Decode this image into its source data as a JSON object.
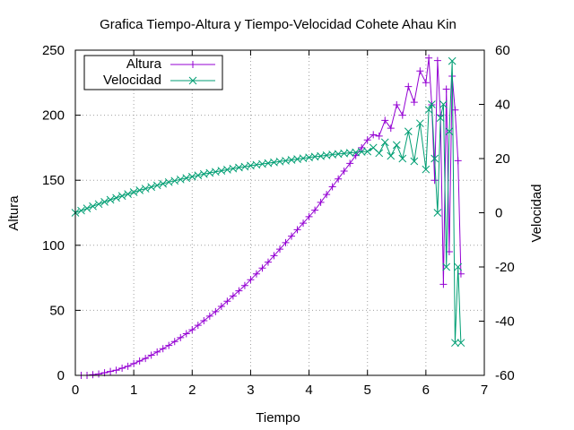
{
  "chart_data": {
    "type": "line",
    "title": "Grafica Tiempo-Altura y Tiempo-Velocidad Cohete Ahau Kin",
    "xlabel": "Tiempo",
    "ylabel": "Altura",
    "y2label": "Velocidad",
    "xlim": [
      0,
      7
    ],
    "ylim": [
      0,
      250
    ],
    "y2lim": [
      -60,
      60
    ],
    "xticks": [
      0,
      1,
      2,
      3,
      4,
      5,
      6,
      7
    ],
    "yticks": [
      0,
      50,
      100,
      150,
      200,
      250
    ],
    "y2ticks": [
      -60,
      -40,
      -20,
      0,
      20,
      40,
      60
    ],
    "grid": true,
    "legend_position": "top-left",
    "series": [
      {
        "name": "Altura",
        "axis": "y",
        "color": "#9400d3",
        "marker": "plus",
        "x": [
          0.1,
          0.2,
          0.3,
          0.4,
          0.5,
          0.6,
          0.7,
          0.8,
          0.9,
          1.0,
          1.1,
          1.2,
          1.3,
          1.4,
          1.5,
          1.6,
          1.7,
          1.8,
          1.9,
          2.0,
          2.1,
          2.2,
          2.3,
          2.4,
          2.5,
          2.6,
          2.7,
          2.8,
          2.9,
          3.0,
          3.1,
          3.2,
          3.3,
          3.4,
          3.5,
          3.6,
          3.7,
          3.8,
          3.9,
          4.0,
          4.1,
          4.2,
          4.3,
          4.4,
          4.5,
          4.6,
          4.7,
          4.8,
          4.9,
          5.0,
          5.1,
          5.2,
          5.3,
          5.4,
          5.5,
          5.6,
          5.7,
          5.8,
          5.9,
          6.0,
          6.05,
          6.1,
          6.15,
          6.2,
          6.25,
          6.3,
          6.35,
          6.4,
          6.45,
          6.5,
          6.55,
          6.6
        ],
        "y": [
          0,
          0,
          0.5,
          1,
          2,
          3,
          4,
          5.5,
          7,
          9,
          11,
          13,
          15.5,
          18,
          20.5,
          23,
          26,
          29,
          32,
          35,
          38.5,
          42,
          45.5,
          49,
          53,
          57,
          61,
          65,
          69,
          73.5,
          78,
          82.5,
          87,
          92,
          97,
          102,
          107,
          112,
          117,
          122,
          127,
          133,
          139,
          145,
          151,
          157,
          163,
          169,
          175,
          181,
          185,
          184,
          196,
          190,
          208,
          200,
          222,
          210,
          234,
          225,
          244,
          208,
          150,
          242,
          200,
          70,
          220,
          95,
          230,
          204,
          165,
          78
        ]
      },
      {
        "name": "Velocidad",
        "axis": "y2",
        "color": "#009e73",
        "marker": "cross",
        "x": [
          0,
          0.1,
          0.2,
          0.3,
          0.4,
          0.5,
          0.6,
          0.7,
          0.8,
          0.9,
          1.0,
          1.1,
          1.2,
          1.3,
          1.4,
          1.5,
          1.6,
          1.7,
          1.8,
          1.9,
          2.0,
          2.1,
          2.2,
          2.3,
          2.4,
          2.5,
          2.6,
          2.7,
          2.8,
          2.9,
          3.0,
          3.1,
          3.2,
          3.3,
          3.4,
          3.5,
          3.6,
          3.7,
          3.8,
          3.9,
          4.0,
          4.1,
          4.2,
          4.3,
          4.4,
          4.5,
          4.6,
          4.7,
          4.8,
          4.9,
          5.0,
          5.1,
          5.2,
          5.3,
          5.4,
          5.5,
          5.6,
          5.7,
          5.8,
          5.9,
          6.0,
          6.05,
          6.1,
          6.15,
          6.2,
          6.25,
          6.3,
          6.35,
          6.4,
          6.45,
          6.5,
          6.55,
          6.6
        ],
        "y": [
          0,
          0.8,
          1.6,
          2.4,
          3.2,
          4.0,
          4.8,
          5.5,
          6.2,
          6.9,
          7.6,
          8.3,
          8.9,
          9.5,
          10.1,
          10.7,
          11.3,
          11.8,
          12.3,
          12.8,
          13.3,
          13.8,
          14.3,
          14.7,
          15.1,
          15.5,
          15.9,
          16.3,
          16.7,
          17.0,
          17.4,
          17.7,
          18.0,
          18.3,
          18.6,
          18.9,
          19.2,
          19.5,
          19.8,
          20.1,
          20.4,
          20.7,
          20.9,
          21.2,
          21.5,
          21.7,
          21.9,
          22.1,
          22.3,
          22.5,
          22.6,
          24,
          22,
          26,
          21,
          25,
          20,
          30,
          19,
          33,
          16,
          38,
          40,
          20,
          0,
          35,
          40,
          -20,
          30,
          56,
          -48,
          -20,
          -48
        ]
      }
    ]
  }
}
